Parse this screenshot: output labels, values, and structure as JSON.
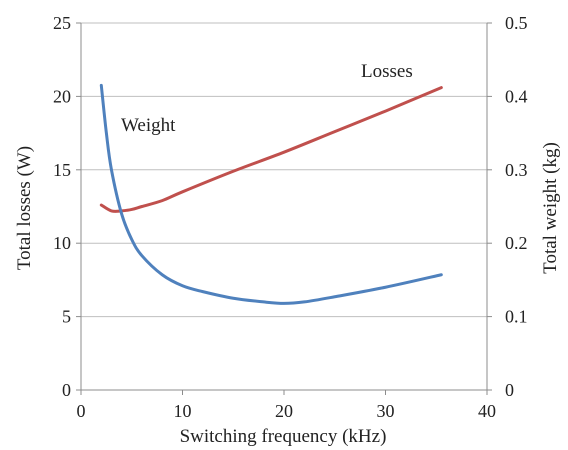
{
  "chart_data": {
    "type": "line",
    "xlabel": "Switching frequency (kHz)",
    "ylabel_left": "Total losses (W)",
    "ylabel_right": "Total weight (kg)",
    "xlim": [
      0,
      40
    ],
    "ylim_left": [
      0,
      25
    ],
    "ylim_right": [
      0,
      0.5
    ],
    "x_ticks": [
      "0",
      "10",
      "20",
      "30",
      "40"
    ],
    "y_ticks_left": [
      "0",
      "5",
      "10",
      "15",
      "20",
      "25"
    ],
    "y_ticks_right": [
      "0",
      "0.1",
      "0.2",
      "0.3",
      "0.4",
      "0.5"
    ],
    "grid": "horizontal",
    "series": [
      {
        "name": "Losses",
        "axis": "left",
        "color": "#c0504d",
        "x": [
          2,
          3,
          4,
          5,
          6,
          8,
          10,
          15,
          20,
          25,
          30,
          35.5
        ],
        "y": [
          12.6,
          12.2,
          12.2,
          12.3,
          12.5,
          12.9,
          13.5,
          14.9,
          16.2,
          17.6,
          19.0,
          20.6
        ]
      },
      {
        "name": "Weight",
        "axis": "right",
        "color": "#4f81bd",
        "x": [
          2,
          2.5,
          3,
          4,
          5,
          6,
          8,
          10,
          12,
          15,
          18,
          20,
          22,
          25,
          30,
          35.5
        ],
        "y": [
          0.415,
          0.35,
          0.3,
          0.24,
          0.205,
          0.183,
          0.157,
          0.142,
          0.134,
          0.125,
          0.12,
          0.118,
          0.12,
          0.127,
          0.14,
          0.157
        ]
      }
    ],
    "annotations": [
      "Weight",
      "Losses"
    ]
  }
}
